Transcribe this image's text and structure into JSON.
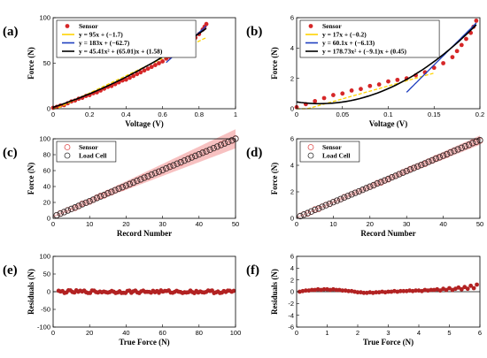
{
  "chart_data": [
    {
      "id": "a",
      "type": "scatter",
      "panel_label": "(a)",
      "xlabel": "Voltage (V)",
      "ylabel": "Force (N)",
      "xlim": [
        0,
        1
      ],
      "ylim": [
        0,
        100
      ],
      "xticks": [
        "0",
        "0.2",
        "0.4",
        "0.6",
        "0.8",
        "1"
      ],
      "yticks": [
        "0",
        "50",
        "100"
      ],
      "legend_position": "top-left",
      "series": [
        {
          "name": "Sensor",
          "kind": "points",
          "color": "#d62728",
          "x": [
            0.0,
            0.02,
            0.04,
            0.06,
            0.08,
            0.1,
            0.12,
            0.14,
            0.16,
            0.18,
            0.2,
            0.22,
            0.24,
            0.26,
            0.28,
            0.3,
            0.32,
            0.34,
            0.36,
            0.38,
            0.4,
            0.42,
            0.44,
            0.46,
            0.48,
            0.5,
            0.52,
            0.54,
            0.56,
            0.58,
            0.6,
            0.62,
            0.64,
            0.66,
            0.68,
            0.7,
            0.72,
            0.74,
            0.76,
            0.78,
            0.8,
            0.82,
            0.83,
            0.84
          ],
          "y": [
            1,
            2,
            3.5,
            4,
            6,
            8,
            9,
            11,
            12,
            14,
            15,
            17,
            18,
            20,
            22,
            24,
            25,
            27,
            29,
            31,
            32,
            34,
            36,
            38,
            40,
            42,
            44,
            46,
            48,
            50,
            52,
            55,
            57,
            60,
            62,
            65,
            68,
            71,
            74,
            78,
            82,
            87,
            90,
            93
          ]
        },
        {
          "name": "y = 95x + (−1.7)",
          "kind": "line",
          "color": "#ffd400",
          "dashed": true,
          "slope": 95,
          "intercept": -1.7,
          "x_range": [
            0,
            0.84
          ]
        },
        {
          "name": "y = 183x + (−62.7)",
          "kind": "line",
          "color": "#1f3fbf",
          "slope": 183,
          "intercept": -62.7,
          "x_range": [
            0.62,
            0.84
          ]
        },
        {
          "name": "y = 45.41x² + (65.01)x + (1.58)",
          "kind": "poly2",
          "color": "#000000",
          "a": 45.41,
          "b": 65.01,
          "c": 1.58,
          "x_range": [
            0,
            0.84
          ]
        }
      ]
    },
    {
      "id": "b",
      "type": "scatter",
      "panel_label": "(b)",
      "xlabel": "Voltage (V)",
      "ylabel": "Force (N)",
      "xlim": [
        0,
        0.2
      ],
      "ylim": [
        0,
        6
      ],
      "xticks": [
        "0",
        "0.05",
        "0.1",
        "0.15",
        "0.2"
      ],
      "yticks": [
        "0",
        "2",
        "4",
        "6"
      ],
      "legend_position": "top-left",
      "series": [
        {
          "name": "Sensor",
          "kind": "points",
          "color": "#d62728",
          "x": [
            0.0,
            0.01,
            0.02,
            0.03,
            0.04,
            0.05,
            0.06,
            0.07,
            0.08,
            0.09,
            0.1,
            0.11,
            0.12,
            0.13,
            0.14,
            0.15,
            0.16,
            0.17,
            0.175,
            0.18,
            0.185,
            0.19,
            0.193,
            0.196
          ],
          "y": [
            0.1,
            0.3,
            0.5,
            0.7,
            0.9,
            1.0,
            1.2,
            1.3,
            1.5,
            1.6,
            1.8,
            1.9,
            2.0,
            2.2,
            2.4,
            2.7,
            3.0,
            3.4,
            3.8,
            4.2,
            4.6,
            5.0,
            5.4,
            5.8
          ]
        },
        {
          "name": "y = 17x + (−0.2)",
          "kind": "line",
          "color": "#ffd400",
          "dashed": true,
          "slope": 17,
          "intercept": -0.2,
          "x_range": [
            0,
            0.15
          ]
        },
        {
          "name": "y = 60.1x + (−6.13)",
          "kind": "line",
          "color": "#1f3fbf",
          "slope": 60.1,
          "intercept": -6.13,
          "x_range": [
            0.12,
            0.196
          ]
        },
        {
          "name": "y = 178.73x² + (−9.1)x + (0.45)",
          "kind": "poly2",
          "color": "#000000",
          "a": 178.73,
          "b": -9.1,
          "c": 0.45,
          "x_range": [
            0,
            0.196
          ]
        }
      ]
    },
    {
      "id": "c",
      "type": "scatter",
      "panel_label": "(c)",
      "xlabel": "Record Number",
      "ylabel": "Force (N)",
      "xlim": [
        0,
        50
      ],
      "ylim": [
        0,
        100
      ],
      "xticks": [
        "0",
        "10",
        "20",
        "30",
        "40",
        "50"
      ],
      "yticks": [
        "0",
        "20",
        "40",
        "60",
        "80",
        "100"
      ],
      "legend_position": "top-left",
      "band": {
        "color": "#f4a7a7",
        "center_slope": 1.96,
        "center_intercept": 2,
        "halfwidth_at_0": 1,
        "halfwidth_at_50": 12
      },
      "series": [
        {
          "name": "Sensor",
          "kind": "open-circles",
          "color": "#e05050",
          "n": 50,
          "slope": 1.96,
          "intercept": 2
        },
        {
          "name": "Load Cell",
          "kind": "open-circles",
          "color": "#333333",
          "n": 50,
          "slope": 1.96,
          "intercept": 2
        }
      ]
    },
    {
      "id": "d",
      "type": "scatter",
      "panel_label": "(d)",
      "xlabel": "Record Number",
      "ylabel": "Force (N)",
      "xlim": [
        0,
        50
      ],
      "ylim": [
        0,
        6
      ],
      "xticks": [
        "0",
        "10",
        "20",
        "30",
        "40",
        "50"
      ],
      "yticks": [
        "0",
        "2",
        "4",
        "6"
      ],
      "legend_position": "top-left",
      "band": {
        "color": "#f4a7a7",
        "center_slope": 0.117,
        "center_intercept": 0.05,
        "halfwidth_at_0": 0.05,
        "halfwidth_at_50": 0.35
      },
      "series": [
        {
          "name": "Sensor",
          "kind": "open-circles",
          "color": "#e05050",
          "n": 50,
          "slope": 0.117,
          "intercept": 0.05
        },
        {
          "name": "Load Cell",
          "kind": "open-circles",
          "color": "#333333",
          "n": 50,
          "slope": 0.117,
          "intercept": 0.05
        }
      ]
    },
    {
      "id": "e",
      "type": "scatter",
      "panel_label": "(e)",
      "xlabel": "True Force (N)",
      "ylabel": "Residuals (N)",
      "xlim": [
        0,
        100
      ],
      "ylim": [
        -100,
        100
      ],
      "xticks": [
        "0",
        "20",
        "40",
        "60",
        "80",
        "100"
      ],
      "yticks": [
        "-100",
        "-50",
        "0",
        "50",
        "100"
      ],
      "zero_line": true,
      "series": [
        {
          "name": "Residuals",
          "kind": "points",
          "color": "#b22222",
          "x_range": [
            3,
            99
          ],
          "n": 90,
          "amplitude": 4
        }
      ]
    },
    {
      "id": "f",
      "type": "scatter",
      "panel_label": "(f)",
      "xlabel": "True Force (N)",
      "ylabel": "Residuals (N)",
      "xlim": [
        0,
        6
      ],
      "ylim": [
        -6,
        6
      ],
      "xticks": [
        "0",
        "1",
        "2",
        "3",
        "4",
        "5",
        "6"
      ],
      "yticks": [
        "-6",
        "-4",
        "-2",
        "0",
        "2",
        "4",
        "6"
      ],
      "zero_line": true,
      "series": [
        {
          "name": "Residuals",
          "kind": "points",
          "color": "#b22222",
          "x": [
            0.1,
            0.2,
            0.3,
            0.4,
            0.5,
            0.6,
            0.7,
            0.8,
            0.9,
            1.0,
            1.1,
            1.2,
            1.3,
            1.4,
            1.5,
            1.6,
            1.7,
            1.8,
            1.9,
            2.0,
            2.1,
            2.2,
            2.3,
            2.4,
            2.5,
            2.6,
            2.7,
            2.8,
            2.9,
            3.0,
            3.1,
            3.2,
            3.3,
            3.4,
            3.5,
            3.6,
            3.7,
            3.8,
            3.9,
            4.0,
            4.1,
            4.2,
            4.3,
            4.4,
            4.5,
            4.6,
            4.7,
            4.8,
            4.9,
            5.0,
            5.1,
            5.2,
            5.3,
            5.4,
            5.5,
            5.6,
            5.7,
            5.8,
            5.9
          ],
          "y": [
            0.0,
            0.1,
            0.2,
            0.2,
            0.3,
            0.3,
            0.4,
            0.3,
            0.4,
            0.4,
            0.3,
            0.4,
            0.3,
            0.3,
            0.2,
            0.2,
            0.1,
            0.1,
            0.0,
            -0.1,
            -0.1,
            -0.2,
            -0.2,
            -0.1,
            -0.2,
            -0.1,
            -0.1,
            0.0,
            -0.1,
            0.0,
            0.0,
            0.1,
            0.0,
            0.1,
            0.1,
            0.1,
            0.2,
            0.1,
            0.2,
            0.2,
            0.1,
            0.3,
            0.2,
            0.3,
            0.3,
            0.4,
            0.2,
            0.5,
            0.3,
            0.6,
            0.3,
            0.5,
            0.7,
            0.4,
            0.8,
            0.5,
            1.0,
            0.6,
            1.2
          ]
        }
      ]
    }
  ]
}
